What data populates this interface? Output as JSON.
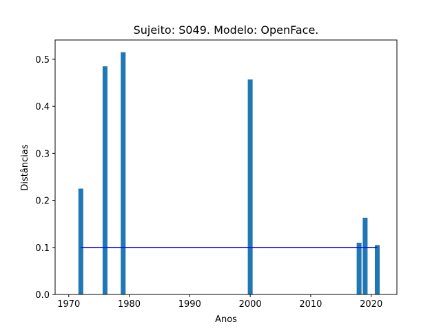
{
  "chart_data": {
    "type": "bar",
    "title": "Sujeito: S049. Modelo: OpenFace.",
    "xlabel": "Anos",
    "ylabel": "Distâncias",
    "xlim": [
      1967.75,
      2024.25
    ],
    "ylim": [
      0,
      0.541
    ],
    "xticks": [
      1970,
      1980,
      1990,
      2000,
      2010,
      2020
    ],
    "xtick_labels": [
      "1970",
      "1980",
      "1990",
      "2000",
      "2010",
      "2020"
    ],
    "yticks": [
      0.0,
      0.1,
      0.2,
      0.3,
      0.4,
      0.5
    ],
    "ytick_labels": [
      "0.0",
      "0.1",
      "0.2",
      "0.3",
      "0.4",
      "0.5"
    ],
    "bar_color": "#1f77b4",
    "bar_width_years": 0.8,
    "x": [
      1972,
      1976,
      1979,
      2000,
      2018,
      2019,
      2021
    ],
    "values": [
      0.225,
      0.485,
      0.515,
      0.457,
      0.11,
      0.163,
      0.105
    ],
    "reference_line": {
      "y": 0.1,
      "x_start": 1972,
      "x_end": 2021,
      "color": "#0000ff"
    },
    "grid": false,
    "legend": "none"
  }
}
